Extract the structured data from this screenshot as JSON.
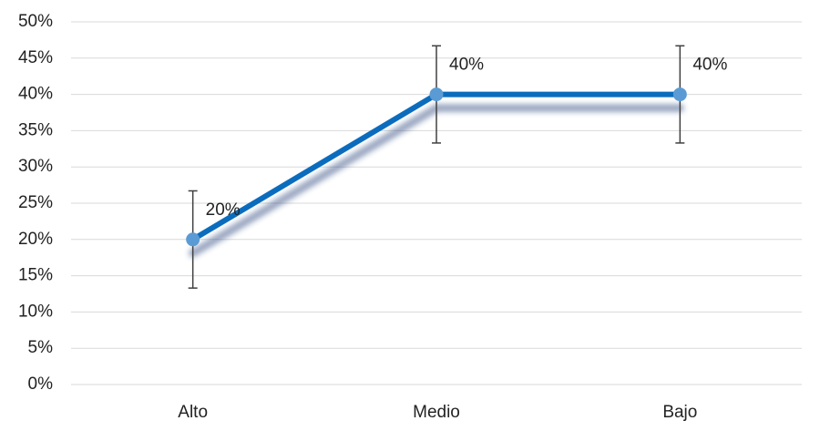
{
  "chart_data": {
    "type": "line",
    "title": "",
    "xlabel": "",
    "ylabel": "",
    "categories": [
      "Alto",
      "Medio",
      "Bajo"
    ],
    "series": [
      {
        "values": [
          20,
          40,
          40
        ],
        "error": [
          6.7,
          6.7,
          6.7
        ],
        "data_labels": [
          "20%",
          "40%",
          "40%"
        ]
      }
    ],
    "ylim": [
      0,
      50
    ],
    "y_ticks": [
      0,
      5,
      10,
      15,
      20,
      25,
      30,
      35,
      40,
      45,
      50
    ],
    "y_tick_labels": [
      "0%",
      "5%",
      "10%",
      "15%",
      "20%",
      "25%",
      "30%",
      "35%",
      "40%",
      "45%",
      "50%"
    ],
    "grid": true,
    "legend": "none"
  },
  "colors": {
    "line": "#0b6cbd",
    "marker": "#5b9bd5",
    "grid": "#d9d9d9",
    "error_bar": "#404040",
    "shadow": "#1f3f7a"
  }
}
